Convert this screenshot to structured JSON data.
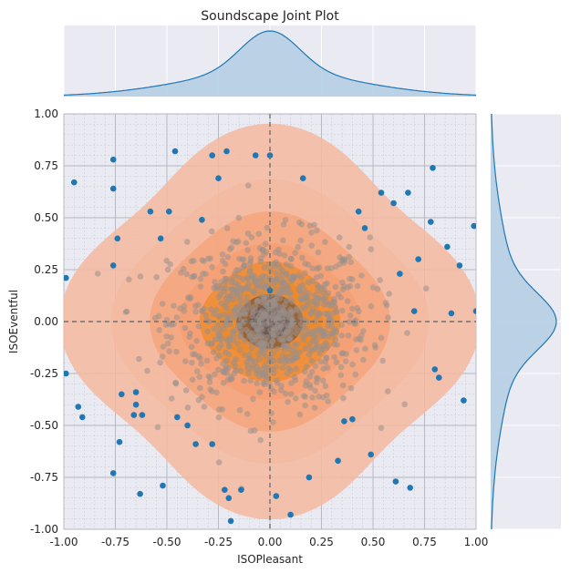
{
  "title": "Soundscape Joint Plot",
  "colors": {
    "panel_bg": "#eaeaf2",
    "grid_major": "#ffffff",
    "grid_minor_main": "#c9c9d3",
    "grid_major_main": "#b5b5bf",
    "points": "#1f77b4",
    "marginal_line": "#1f77b4",
    "marginal_fill": "#b3cde3",
    "density_outer": "#f4b9a0",
    "density_mid": "#f59a6a",
    "density_inner": "#ee8a2a",
    "density_core": "#6e5a55",
    "zero_line": "#707070"
  },
  "chart_data": {
    "type": "scatter",
    "title": "Soundscape Joint Plot",
    "xlabel": "ISOPleasant",
    "ylabel": "ISOEventful",
    "xlim": [
      -1.0,
      1.0
    ],
    "ylim": [
      -1.0,
      1.0
    ],
    "xticks": [
      "-1.00",
      "-0.75",
      "-0.50",
      "-0.25",
      "0.00",
      "0.25",
      "0.50",
      "0.75",
      "1.00"
    ],
    "yticks": [
      "-1.00",
      "-0.75",
      "-0.50",
      "-0.25",
      "0.00",
      "0.25",
      "0.50",
      "0.75",
      "1.00"
    ],
    "grid": true,
    "minor_grid": true,
    "zero_lines": true,
    "overlay": "kde density contours (filled, orange)",
    "marginals": "kde (top for ISOPleasant, right for ISOEventful)",
    "outlier_points": [
      [
        -0.95,
        0.67
      ],
      [
        -0.99,
        0.21
      ],
      [
        -0.99,
        -0.25
      ],
      [
        -0.93,
        -0.41
      ],
      [
        -0.91,
        -0.46
      ],
      [
        -0.76,
        0.78
      ],
      [
        -0.76,
        0.64
      ],
      [
        -0.76,
        0.27
      ],
      [
        -0.74,
        0.4
      ],
      [
        -0.76,
        -0.73
      ],
      [
        -0.73,
        -0.58
      ],
      [
        -0.72,
        -0.35
      ],
      [
        -0.65,
        -0.34
      ],
      [
        -0.65,
        -0.4
      ],
      [
        -0.66,
        -0.45
      ],
      [
        -0.62,
        -0.45
      ],
      [
        -0.63,
        -0.83
      ],
      [
        -0.52,
        -0.79
      ],
      [
        -0.58,
        0.53
      ],
      [
        -0.53,
        0.4
      ],
      [
        -0.49,
        0.53
      ],
      [
        -0.46,
        0.82
      ],
      [
        -0.45,
        -0.46
      ],
      [
        -0.4,
        -0.5
      ],
      [
        -0.36,
        -0.59
      ],
      [
        -0.28,
        -0.59
      ],
      [
        -0.28,
        0.8
      ],
      [
        -0.21,
        0.82
      ],
      [
        -0.25,
        0.69
      ],
      [
        -0.33,
        0.49
      ],
      [
        -0.22,
        -0.81
      ],
      [
        -0.14,
        -0.81
      ],
      [
        -0.2,
        -0.85
      ],
      [
        -0.19,
        -0.96
      ],
      [
        -0.07,
        0.8
      ],
      [
        0.0,
        0.8
      ],
      [
        0.03,
        -0.84
      ],
      [
        0.1,
        -0.93
      ],
      [
        0.16,
        0.69
      ],
      [
        0.19,
        -0.75
      ],
      [
        0.33,
        -0.67
      ],
      [
        0.36,
        -0.48
      ],
      [
        0.4,
        -0.47
      ],
      [
        0.43,
        0.53
      ],
      [
        0.46,
        0.45
      ],
      [
        0.49,
        -0.64
      ],
      [
        0.54,
        0.62
      ],
      [
        0.6,
        0.57
      ],
      [
        0.63,
        0.23
      ],
      [
        0.61,
        -0.77
      ],
      [
        0.67,
        0.62
      ],
      [
        0.68,
        -0.8
      ],
      [
        0.72,
        0.3
      ],
      [
        0.78,
        0.48
      ],
      [
        0.79,
        0.74
      ],
      [
        0.8,
        -0.23
      ],
      [
        0.82,
        -0.27
      ],
      [
        0.86,
        0.36
      ],
      [
        0.88,
        0.04
      ],
      [
        0.92,
        0.27
      ],
      [
        0.94,
        -0.38
      ],
      [
        0.99,
        0.46
      ],
      [
        1.0,
        0.05
      ],
      [
        0.0,
        0.15
      ],
      [
        0.7,
        0.05
      ]
    ],
    "core_points_center": [
      0.0,
      0.0
    ],
    "top_marginal": {
      "variable": "ISOPleasant",
      "peak_x": 0.0
    },
    "right_marginal": {
      "variable": "ISOEventful",
      "peak_y": 0.0
    }
  }
}
